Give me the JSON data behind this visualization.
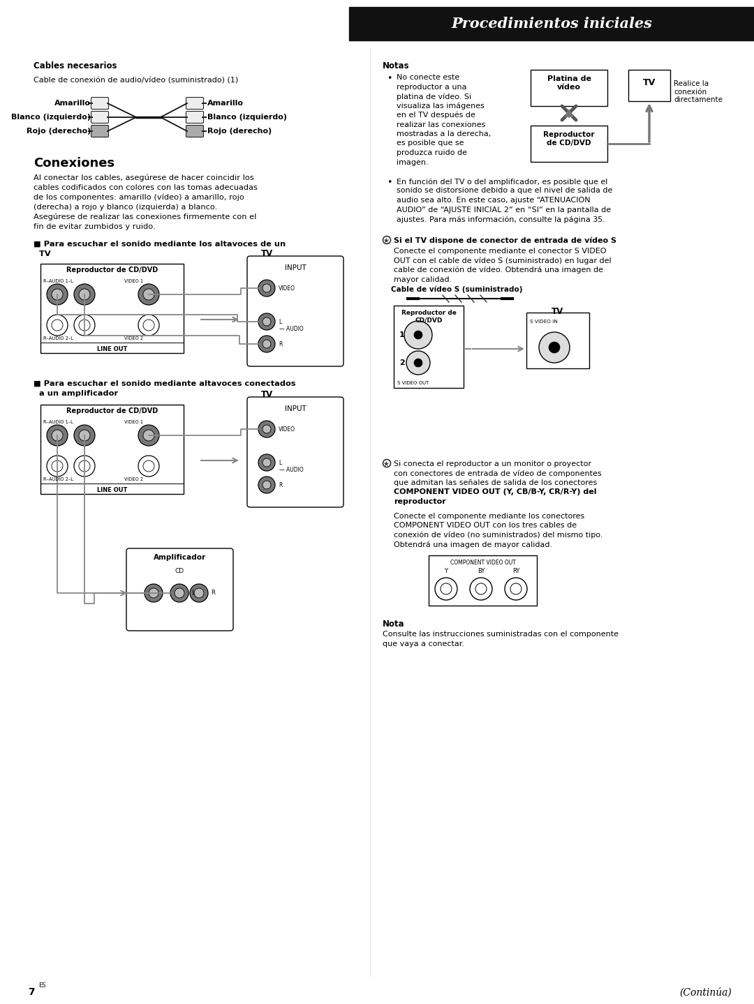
{
  "bg_color": "#ffffff",
  "header_bg": "#111111",
  "header_text_color": "#ffffff",
  "header_text": "Procedimientos iniciales",
  "page_number": "7",
  "superscript": "ES",
  "section_cables": "Cables necesarios",
  "cable_desc": "Cable de conexión de audio/vídeo (suministrado) (1)",
  "cable_labels_left": [
    "Amarillo",
    "Blanco (izquierdo)",
    "Rojo (derecho)"
  ],
  "cable_labels_right": [
    "Amarillo",
    "Blanco (izquierdo)",
    "Rojo (derecho)"
  ],
  "section_conexiones": "Conexiones",
  "conexiones_text1": "Al conectar los cables, asegúrese de hacer coincidir los",
  "conexiones_text2": "cables codificados con colores con las tomas adecuadas",
  "conexiones_text3": "de los componentes: amarillo (vídeo) a amarillo, rojo",
  "conexiones_text4": "(derecha) a rojo y blanco (izquierda) a blanco.",
  "conexiones_text5": "Asegúrese de realizar las conexiones firmemente con el",
  "conexiones_text6": "fin de evitar zumbidos y ruido.",
  "para1_line1": "■ Para escuchar el sonido mediante los altavoces de un",
  "para1_line2": "  TV",
  "para2_line1": "■ Para escuchar el sonido mediante altavoces conectados",
  "para2_line2": "  a un amplificador",
  "notas_title": "Notas",
  "nota1_bullet": "• No conecte este",
  "nota1_lines": [
    "No conecte este",
    "reproductor a una",
    "platina de vídeo. Si",
    "visualiza las imágenes",
    "en el TV después de",
    "realizar las conexiones",
    "mostradas a la derecha,",
    "es posible que se",
    "produzca ruido de",
    "imagen."
  ],
  "nota2_lines": [
    "En función del TV o del amplificador, es posible que el",
    "sonido se distorsione debido a que el nivel de salida de",
    "audio sea alto. En este caso, ajuste “ATENUACION",
    "AUDIO” de “AJUSTE INICIAL 2” en “SI” en la pantalla de",
    "ajustes. Para más información, consulte la página 35."
  ],
  "svideo_title": "Si el TV dispone de conector de entrada de vídeo S",
  "svideo_lines": [
    "Conecte el componente mediante el conector S VIDEO",
    "OUT con el cable de vídeo S (suministrado) en lugar del",
    "cable de conexión de vídeo. Obtendrá una imagen de",
    "mayor calidad."
  ],
  "svideo_cable_title": "Cable de vídeo S (suministrado)",
  "component_title_lines": [
    "Si conecta el reproductor a un monitor o proyector",
    "con conectores de entrada de vídeo de componentes",
    "que admitan las señales de salida de los conectores",
    "COMPONENT VIDEO OUT (Y, CB/B-Y, CR/R-Y) del",
    "reproductor"
  ],
  "component_lines": [
    "Conecte el componente mediante los conectores",
    "COMPONENT VIDEO OUT con los tres cables de",
    "conexión de vídeo (no suministrados) del mismo tipo.",
    "Obtendrá una imagen de mayor calidad."
  ],
  "nota_final_title": "Nota",
  "nota_final_lines": [
    "Consulte las instrucciones suministradas con el componente",
    "que vaya a conectar."
  ],
  "continua": "(Continúa)",
  "platina_label": "Platina de\nvídeo",
  "tv_label": "TV",
  "reproductor_label": "Reproductor\nde CD/DVD",
  "realice_label": "Realice la\nconexión\ndirectamente"
}
